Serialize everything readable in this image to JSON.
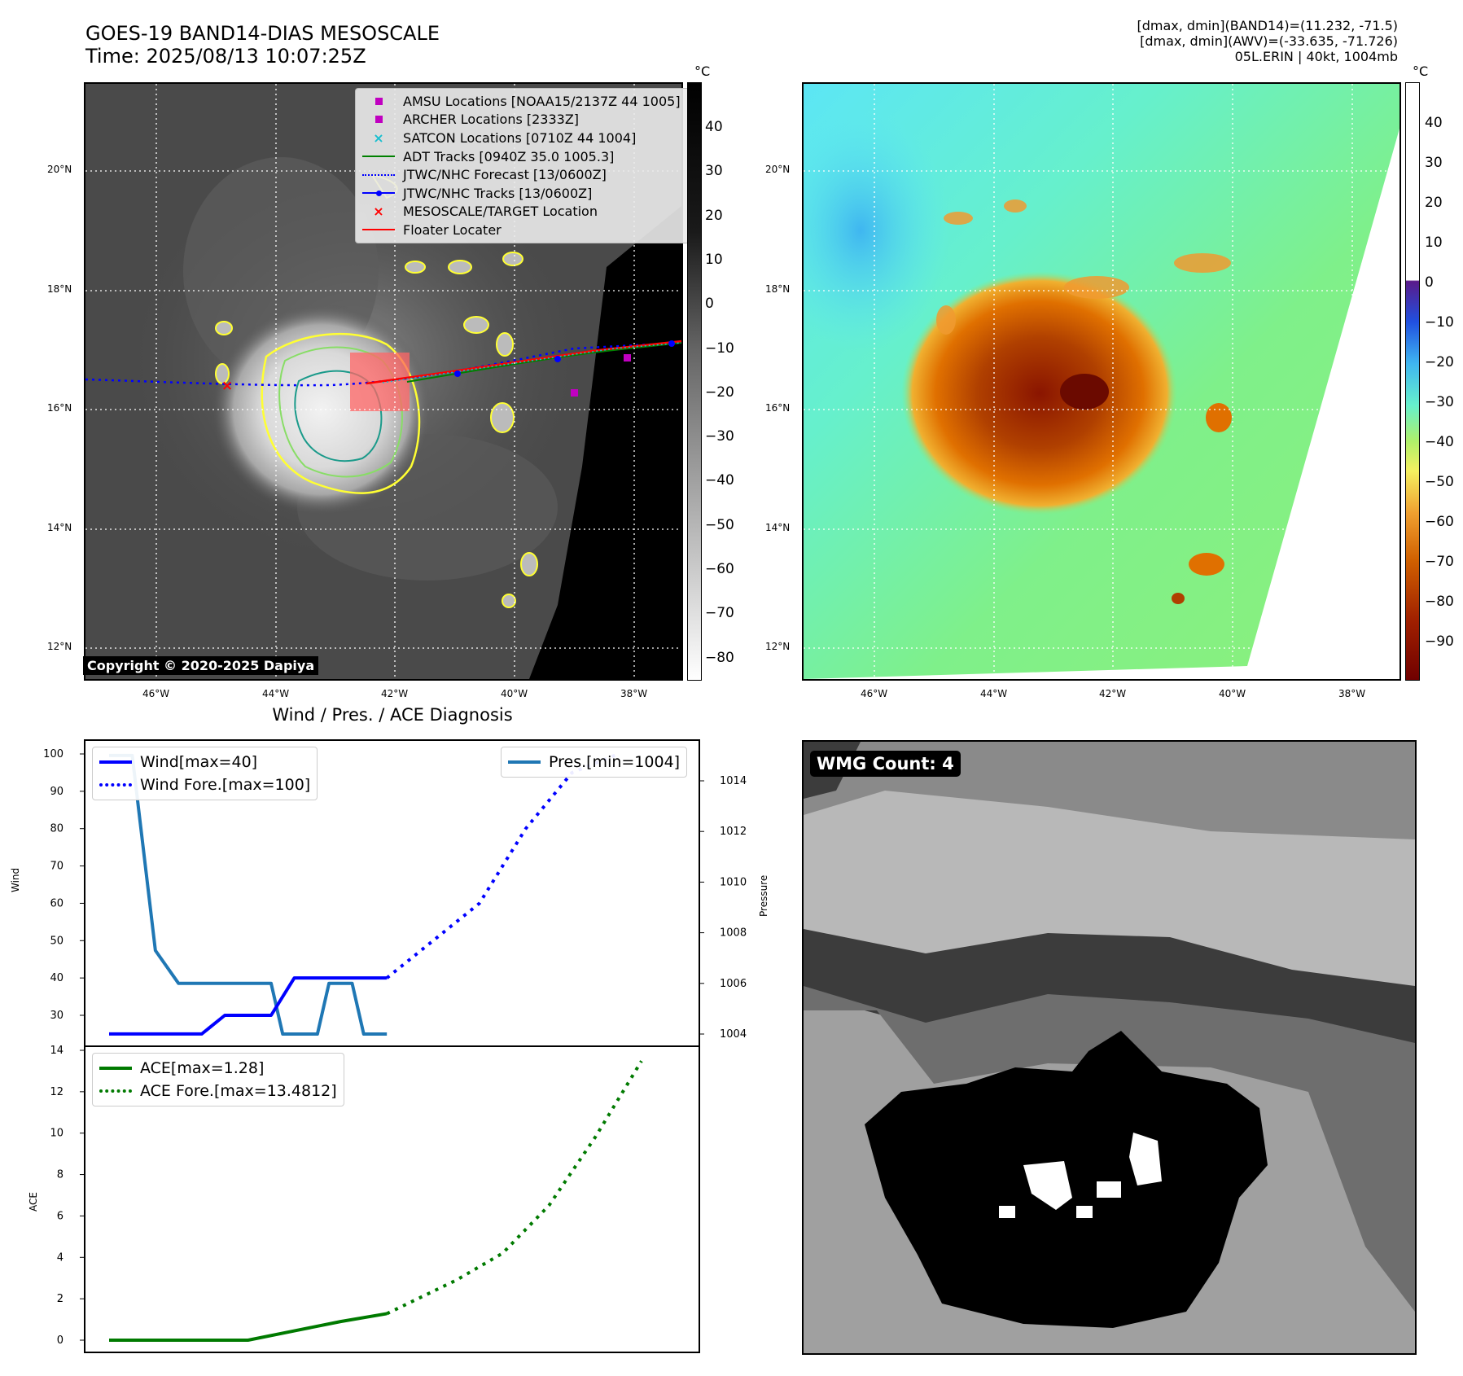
{
  "header": {
    "title_line1": "GOES-19 BAND14-DIAS MESOSCALE",
    "title_line2": "Time: 2025/08/13 10:07:25Z",
    "info_line1": "[dmax, dmin](BAND14)=(11.232, -71.5)",
    "info_line2": "[dmax, dmin](AWV)=(-33.635, -71.726)",
    "info_line3": "05L.ERIN | 40kt, 1004mb"
  },
  "map_axes": {
    "lat_ticks": [
      "20°N",
      "18°N",
      "16°N",
      "14°N",
      "12°N"
    ],
    "lon_ticks": [
      "46°W",
      "44°W",
      "42°W",
      "40°W",
      "38°W"
    ]
  },
  "ir_panel": {
    "legend": [
      {
        "label": "AMSU Locations [NOAA15/2137Z 44 1005]",
        "marker": "square",
        "color": "#c000c0"
      },
      {
        "label": "ARCHER Locations [2333Z]",
        "marker": "square",
        "color": "#c000c0"
      },
      {
        "label": "SATCON Locations [0710Z 44 1004]",
        "marker": "x",
        "color": "#17becf"
      },
      {
        "label": "ADT Tracks [0940Z 35.0 1005.3]",
        "marker": "line",
        "color": "#008000"
      },
      {
        "label": "JTWC/NHC Forecast [13/0600Z]",
        "marker": "dotted",
        "color": "#0000ff"
      },
      {
        "label": "JTWC/NHC Tracks [13/0600Z]",
        "marker": "line-dot",
        "color": "#0000ff"
      },
      {
        "label": "MESOSCALE/TARGET Location",
        "marker": "x",
        "color": "#ff0000"
      },
      {
        "label": "Floater Locater",
        "marker": "line",
        "color": "#ff0000"
      }
    ],
    "colorbar_unit": "°C",
    "colorbar_ticks": [
      "40",
      "30",
      "20",
      "10",
      "0",
      "−10",
      "−20",
      "−30",
      "−40",
      "−50",
      "−60",
      "−70",
      "−80"
    ],
    "copyright": "Copyright © 2020-2025 Dapiya"
  },
  "wv_panel": {
    "colorbar_unit": "°C",
    "colorbar_ticks": [
      "40",
      "30",
      "20",
      "10",
      "0",
      "−10",
      "−20",
      "−30",
      "−40",
      "−50",
      "−60",
      "−70",
      "−80",
      "−90"
    ]
  },
  "diagnosis": {
    "title": "Wind / Pres. / ACE Diagnosis",
    "wind_ylabel": "Wind",
    "pres_ylabel": "Pressure",
    "ace_ylabel": "ACE",
    "wind_ticks": [
      "100",
      "90",
      "80",
      "70",
      "60",
      "50",
      "40",
      "30"
    ],
    "pres_ticks": [
      "1014",
      "1012",
      "1010",
      "1008",
      "1006",
      "1004"
    ],
    "ace_ticks": [
      "14",
      "12",
      "10",
      "8",
      "6",
      "4",
      "2",
      "0"
    ],
    "legend_wind": "Wind[max=40]",
    "legend_wind_fore": "Wind Fore.[max=100]",
    "legend_pres": "Pres.[min=1004]",
    "legend_ace": "ACE[max=1.28]",
    "legend_ace_fore": "ACE Fore.[max=13.4812]"
  },
  "wmg_panel": {
    "badge": "WMG Count: 4"
  },
  "chart_data": [
    {
      "type": "line",
      "title": "Wind / Pres. / ACE Diagnosis",
      "ylabel": "Wind",
      "ylim": [
        25,
        103
      ],
      "series": [
        {
          "name": "Wind[max=40]",
          "x": [
            0,
            1,
            2,
            3,
            4,
            5,
            6,
            7,
            8,
            9,
            10,
            11,
            12
          ],
          "values": [
            25,
            25,
            25,
            25,
            25,
            30,
            30,
            30,
            40,
            40,
            40,
            40,
            40
          ]
        },
        {
          "name": "Wind Fore.[max=100]",
          "x": [
            12,
            14,
            16,
            18,
            20,
            22
          ],
          "values": [
            40,
            50,
            60,
            80,
            95,
            100
          ]
        }
      ]
    },
    {
      "type": "line",
      "ylabel": "Pressure",
      "ylim": [
        1003.5,
        1015
      ],
      "series": [
        {
          "name": "Pres.[min=1004]",
          "x": [
            0,
            0.5,
            1,
            2,
            3,
            4,
            5,
            6,
            7,
            7.5,
            8,
            9,
            9.5,
            10,
            10.5,
            11,
            12
          ],
          "values": [
            1015,
            1015,
            1015,
            1007.3,
            1006,
            1006,
            1006,
            1006,
            1006,
            1004,
            1004,
            1004,
            1006,
            1006,
            1006,
            1004,
            1004
          ]
        }
      ]
    },
    {
      "type": "line",
      "ylabel": "ACE",
      "ylim": [
        -0.5,
        14
      ],
      "series": [
        {
          "name": "ACE[max=1.28]",
          "x": [
            0,
            2,
            4,
            6,
            8,
            10,
            12
          ],
          "values": [
            0,
            0,
            0,
            0,
            0.45,
            0.9,
            1.28
          ]
        },
        {
          "name": "ACE Fore.[max=13.4812]",
          "x": [
            12,
            15,
            17,
            19,
            21,
            23
          ],
          "values": [
            1.28,
            2.9,
            4.2,
            6.5,
            9.8,
            13.4812
          ]
        }
      ]
    }
  ]
}
